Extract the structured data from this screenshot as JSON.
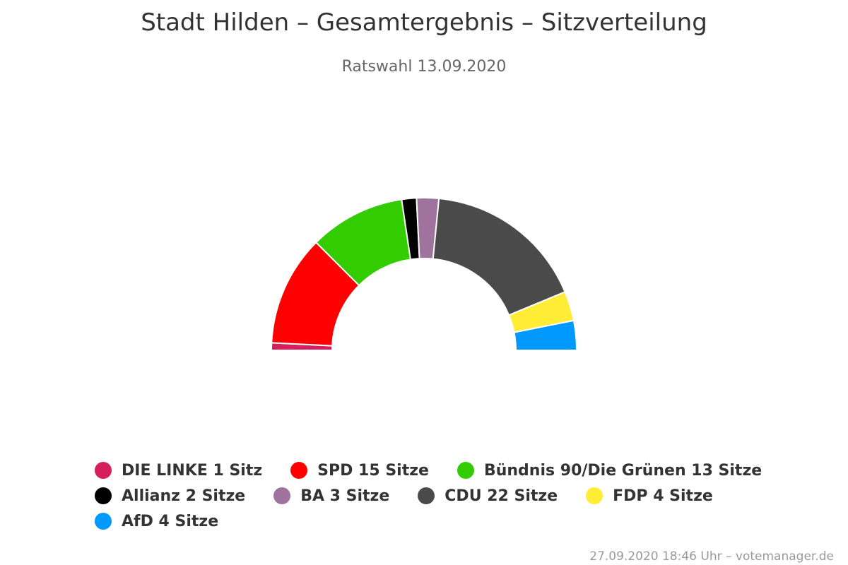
{
  "chart_data": {
    "type": "pie",
    "variant": "semicircle-parliament",
    "title": "Stadt Hilden – Gesamtergebnis – Sitzverteilung",
    "subtitle": "Ratswahl 13.09.2020",
    "legend_placement": "bottom",
    "series": [
      {
        "name": "DIE LINKE",
        "label": "DIE LINKE 1 Sitz",
        "value": 1,
        "color": "#d51e5b"
      },
      {
        "name": "SPD",
        "label": "SPD 15 Sitze",
        "value": 15,
        "color": "#ff0000"
      },
      {
        "name": "Bündnis 90/Die Grünen",
        "label": "Bündnis 90/Die Grünen 13 Sitze",
        "value": 13,
        "color": "#33cc00"
      },
      {
        "name": "Allianz",
        "label": "Allianz 2 Sitze",
        "value": 2,
        "color": "#000000"
      },
      {
        "name": "BA",
        "label": "BA 3 Sitze",
        "value": 3,
        "color": "#a0729e"
      },
      {
        "name": "CDU",
        "label": "CDU 22 Sitze",
        "value": 22,
        "color": "#4a4a4a"
      },
      {
        "name": "FDP",
        "label": "FDP 4 Sitze",
        "value": 4,
        "color": "#ffed35"
      },
      {
        "name": "AfD",
        "label": "AfD 4 Sitze",
        "value": 4,
        "color": "#0099ff"
      }
    ]
  },
  "credits": "27.09.2020 18:46 Uhr – votemanager.de"
}
